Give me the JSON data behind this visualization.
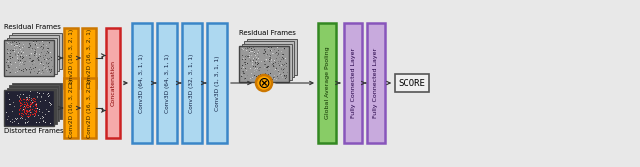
{
  "fig_bg": "#e8e8e8",
  "residual_label_top": "Residual Frames",
  "distorted_label": "Distorted Frames",
  "residual_label_mid": "Residual Frames",
  "score_label": "SCORE",
  "conv2d_labels": [
    "Conv2D (16, 3, 2, 1)",
    "Conv2D (16, 3, 2, 1)",
    "Conv2D (16, 3, 2, 1)",
    "Conv2D (16, 3, 2, 1)"
  ],
  "concat_label": "Concatenation",
  "conv3d_labels": [
    "Conv3D (64, 3, 1, 1)",
    "Conv3D (64, 3, 1, 1)",
    "Conv3D (32, 3, 1, 1)",
    "Conv3D (1, 3, 1, 1)"
  ],
  "gap_label": "Global Average Pooling",
  "fc_labels": [
    "Fully Connected Layer",
    "Fully Connected Layer"
  ],
  "orange_face": "#FFA500",
  "orange_edge": "#CC7700",
  "blue_face": "#ADD8F0",
  "blue_edge": "#3A86C8",
  "red_face": "#F5AAAA",
  "red_edge": "#CC2222",
  "green_face": "#88CC66",
  "green_edge": "#338822",
  "purple_face": "#C8AADD",
  "purple_edge": "#8855BB",
  "score_face": "#f0f0f0",
  "score_edge": "#555555"
}
